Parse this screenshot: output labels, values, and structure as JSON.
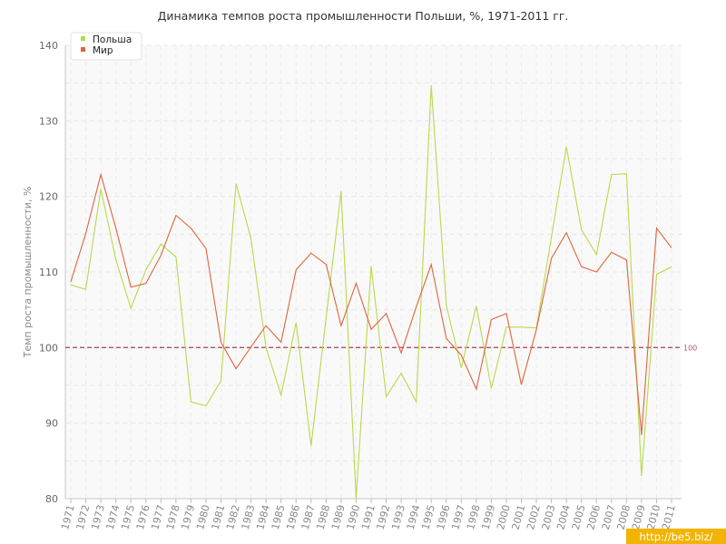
{
  "chart_data": {
    "type": "line",
    "title": "Динамика темпов роста промышленности Польши, %, 1971-2011 гг.",
    "xlabel": "",
    "ylabel": "Темп роста промышленности, %",
    "x": [
      "1971",
      "1972",
      "1973",
      "1974",
      "1975",
      "1976",
      "1977",
      "1978",
      "1979",
      "1980",
      "1981",
      "1982",
      "1983",
      "1984",
      "1985",
      "1986",
      "1987",
      "1988",
      "1989",
      "1990",
      "1991",
      "1992",
      "1993",
      "1994",
      "1995",
      "1996",
      "1997",
      "1998",
      "1999",
      "2000",
      "2001",
      "2002",
      "2003",
      "2004",
      "2005",
      "2006",
      "2007",
      "2008",
      "2009",
      "2010",
      "2011"
    ],
    "ylim": [
      80,
      140
    ],
    "yticks": [
      80,
      90,
      100,
      110,
      120,
      130,
      140
    ],
    "grid": true,
    "legend_position": "top-left",
    "reference_line": {
      "value": 100,
      "label": "100",
      "color": "#b05060"
    },
    "series": [
      {
        "name": "Польша",
        "color": "#b9d94a",
        "values": [
          108.3,
          107.7,
          121.0,
          111.6,
          105.2,
          110.3,
          113.7,
          112.0,
          92.8,
          92.3,
          95.6,
          121.7,
          114.4,
          100.0,
          93.7,
          103.3,
          87.0,
          104.0,
          120.7,
          80.0,
          110.8,
          93.5,
          96.6,
          92.8,
          134.7,
          105.6,
          97.3,
          105.5,
          94.6,
          102.7,
          102.7,
          102.6,
          114.6,
          126.6,
          115.6,
          112.3,
          122.9,
          123.0,
          83.0,
          109.7,
          110.7
        ]
      },
      {
        "name": "Мир",
        "color": "#e0643a",
        "values": [
          108.7,
          115.1,
          122.9,
          115.8,
          108.0,
          108.5,
          112.2,
          117.5,
          115.8,
          113.1,
          100.7,
          97.2,
          100.1,
          102.9,
          100.7,
          110.3,
          112.5,
          111.0,
          102.9,
          108.5,
          102.4,
          104.5,
          99.3,
          105.4,
          111.0,
          101.2,
          99.0,
          94.5,
          103.7,
          104.5,
          95.1,
          102.4,
          111.8,
          115.2,
          110.7,
          110.0,
          112.6,
          111.6,
          88.4,
          115.8,
          113.2
        ]
      }
    ]
  },
  "watermark": {
    "text": "http://be5.biz/"
  }
}
